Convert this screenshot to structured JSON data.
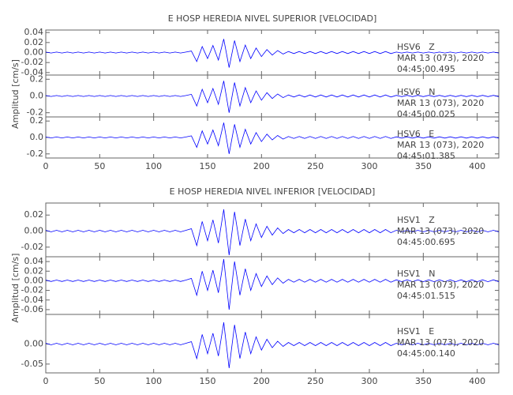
{
  "chart_data": [
    {
      "type": "line",
      "title": "E HOSP HEREDIA NIVEL SUPERIOR [VELOCIDAD]",
      "ylabel": "Amplitud [cm/s]",
      "color": "#0000ff",
      "xlim": [
        0,
        420
      ],
      "xticks": [
        0,
        50,
        100,
        150,
        200,
        250,
        300,
        350,
        400
      ],
      "x": [
        0,
        5,
        10,
        15,
        20,
        25,
        30,
        35,
        40,
        45,
        50,
        55,
        60,
        65,
        70,
        75,
        80,
        85,
        90,
        95,
        100,
        105,
        110,
        115,
        120,
        125,
        130,
        135,
        140,
        145,
        150,
        155,
        160,
        165,
        170,
        175,
        180,
        185,
        190,
        195,
        200,
        205,
        210,
        215,
        220,
        225,
        230,
        235,
        240,
        245,
        250,
        255,
        260,
        265,
        270,
        275,
        280,
        285,
        290,
        295,
        300,
        305,
        310,
        315,
        320,
        325,
        330,
        335,
        340,
        345,
        350,
        355,
        360,
        365,
        370,
        375,
        380,
        385,
        390,
        395,
        400,
        405,
        410,
        415,
        420
      ],
      "panels": [
        {
          "station": "HSV6   Z",
          "date": "MAR 13 (073), 2020",
          "time": "04:45:00.495",
          "ylim": [
            -0.045,
            0.045
          ],
          "yticks": [
            0.04,
            0.02,
            {
              "value": 0,
              "label": "0.00"
            },
            -0.02,
            -0.04
          ],
          "values": [
            0.001,
            -0.001,
            0.001,
            -0.001,
            0.001,
            -0.001,
            0.001,
            -0.001,
            0.001,
            -0.001,
            0.001,
            -0.001,
            0.001,
            -0.001,
            0.001,
            -0.001,
            0.001,
            -0.001,
            0.001,
            -0.001,
            0.001,
            -0.001,
            0.001,
            -0.001,
            0.001,
            -0.001,
            0.001,
            0.003,
            -0.018,
            0.012,
            -0.012,
            0.014,
            -0.015,
            0.027,
            -0.03,
            0.024,
            -0.018,
            0.015,
            -0.012,
            0.009,
            -0.008,
            0.006,
            -0.005,
            0.004,
            -0.003,
            0.002,
            -0.002,
            0.002,
            -0.002,
            0.002,
            -0.002,
            0.002,
            -0.002,
            0.002,
            -0.002,
            0.002,
            -0.002,
            0.002,
            -0.002,
            0.002,
            -0.002,
            0.002,
            -0.002,
            0.002,
            -0.002,
            0.001,
            -0.001,
            0.001,
            -0.001,
            0.001,
            -0.001,
            0.001,
            -0.001,
            0.001,
            -0.001,
            0.001,
            -0.001,
            0.001,
            -0.001,
            0.001,
            -0.001,
            0.001,
            -0.001,
            0.001,
            -0.001
          ]
        },
        {
          "station": "HSV6   N",
          "date": "MAR 13 (073), 2020",
          "time": "04:45:00.025",
          "ylim": [
            -0.25,
            0.25
          ],
          "yticks": [
            0.2,
            {
              "value": 0,
              "label": "0.0"
            },
            -0.2
          ],
          "values": [
            0.006,
            -0.006,
            0.006,
            -0.006,
            0.006,
            -0.006,
            0.006,
            -0.006,
            0.006,
            -0.006,
            0.006,
            -0.006,
            0.006,
            -0.006,
            0.006,
            -0.006,
            0.006,
            -0.006,
            0.006,
            -0.006,
            0.006,
            -0.006,
            0.006,
            -0.006,
            0.006,
            -0.006,
            0.006,
            0.02,
            -0.12,
            0.08,
            -0.08,
            0.09,
            -0.1,
            0.18,
            -0.2,
            0.16,
            -0.12,
            0.1,
            -0.08,
            0.06,
            -0.05,
            0.04,
            -0.03,
            0.024,
            -0.02,
            0.012,
            -0.012,
            0.012,
            -0.012,
            0.012,
            -0.012,
            0.012,
            -0.012,
            0.012,
            -0.012,
            0.012,
            -0.012,
            0.012,
            -0.012,
            0.012,
            -0.012,
            0.012,
            -0.012,
            0.012,
            -0.012,
            0.008,
            -0.008,
            0.008,
            -0.008,
            0.008,
            -0.008,
            0.008,
            -0.008,
            0.008,
            -0.008,
            0.008,
            -0.008,
            0.008,
            -0.008,
            0.008,
            -0.008,
            0.008,
            -0.008,
            0.008,
            -0.008
          ]
        },
        {
          "station": "HSV6   E",
          "date": "MAR 13 (073), 2020",
          "time": "04:45:01.385",
          "ylim": [
            -0.25,
            0.25
          ],
          "yticks": [
            0.2,
            {
              "value": 0,
              "label": "0.0"
            },
            -0.2
          ],
          "values": [
            0.006,
            -0.006,
            0.006,
            -0.006,
            0.006,
            -0.006,
            0.006,
            -0.006,
            0.006,
            -0.006,
            0.006,
            -0.006,
            0.006,
            -0.006,
            0.006,
            -0.006,
            0.006,
            -0.006,
            0.006,
            -0.006,
            0.006,
            -0.006,
            0.006,
            -0.006,
            0.006,
            -0.006,
            0.006,
            0.02,
            -0.12,
            0.08,
            -0.08,
            0.09,
            -0.1,
            0.18,
            -0.2,
            0.16,
            -0.12,
            0.1,
            -0.08,
            0.06,
            -0.05,
            0.04,
            -0.03,
            0.024,
            -0.02,
            0.012,
            -0.012,
            0.012,
            -0.012,
            0.012,
            -0.012,
            0.012,
            -0.012,
            0.012,
            -0.012,
            0.012,
            -0.012,
            0.012,
            -0.012,
            0.012,
            -0.012,
            0.012,
            -0.012,
            0.012,
            -0.012,
            0.008,
            -0.008,
            0.008,
            -0.008,
            0.008,
            -0.008,
            0.008,
            -0.008,
            0.008,
            -0.008,
            0.008,
            -0.008,
            0.008,
            -0.008,
            0.008,
            -0.008,
            0.008,
            -0.008,
            0.008,
            -0.008
          ]
        }
      ]
    },
    {
      "type": "line",
      "title": "E HOSP HEREDIA NIVEL INFERIOR [VELOCIDAD]",
      "ylabel": "Amplitud [cm/s]",
      "color": "#0000ff",
      "xlim": [
        0,
        420
      ],
      "xticks": [
        0,
        50,
        100,
        150,
        200,
        250,
        300,
        350,
        400
      ],
      "x": [
        0,
        5,
        10,
        15,
        20,
        25,
        30,
        35,
        40,
        45,
        50,
        55,
        60,
        65,
        70,
        75,
        80,
        85,
        90,
        95,
        100,
        105,
        110,
        115,
        120,
        125,
        130,
        135,
        140,
        145,
        150,
        155,
        160,
        165,
        170,
        175,
        180,
        185,
        190,
        195,
        200,
        205,
        210,
        215,
        220,
        225,
        230,
        235,
        240,
        245,
        250,
        255,
        260,
        265,
        270,
        275,
        280,
        285,
        290,
        295,
        300,
        305,
        310,
        315,
        320,
        325,
        330,
        335,
        340,
        345,
        350,
        355,
        360,
        365,
        370,
        375,
        380,
        385,
        390,
        395,
        400,
        405,
        410,
        415,
        420
      ],
      "panels": [
        {
          "station": "HSV1   Z",
          "date": "MAR 13 (073), 2020",
          "time": "04:45:00.695",
          "ylim": [
            -0.032,
            0.035
          ],
          "yticks": [
            0.02,
            {
              "value": 0,
              "label": "0.00"
            },
            -0.02
          ],
          "values": [
            0.001,
            -0.001,
            0.001,
            -0.001,
            0.001,
            -0.001,
            0.001,
            -0.001,
            0.001,
            -0.001,
            0.001,
            -0.001,
            0.001,
            -0.001,
            0.001,
            -0.001,
            0.001,
            -0.001,
            0.001,
            -0.001,
            0.001,
            -0.001,
            0.001,
            -0.001,
            0.001,
            -0.001,
            0.001,
            0.003,
            -0.018,
            0.012,
            -0.012,
            0.014,
            -0.015,
            0.027,
            -0.03,
            0.024,
            -0.018,
            0.015,
            -0.012,
            0.009,
            -0.008,
            0.006,
            -0.005,
            0.004,
            -0.003,
            0.002,
            -0.002,
            0.002,
            -0.002,
            0.002,
            -0.002,
            0.002,
            -0.002,
            0.002,
            -0.002,
            0.002,
            -0.002,
            0.002,
            -0.002,
            0.002,
            -0.002,
            0.002,
            -0.002,
            0.002,
            -0.002,
            0.001,
            -0.001,
            0.001,
            -0.001,
            0.001,
            -0.001,
            0.001,
            -0.001,
            0.001,
            -0.001,
            0.001,
            -0.001,
            0.001,
            -0.001,
            0.001,
            -0.001,
            0.001,
            -0.001,
            0.001,
            -0.001
          ]
        },
        {
          "station": "HSV1   N",
          "date": "MAR 13 (073), 2020",
          "time": "04:45:01.515",
          "ylim": [
            -0.07,
            0.05
          ],
          "yticks": [
            0.04,
            0.02,
            {
              "value": 0,
              "label": "0.00"
            },
            -0.02,
            -0.04,
            -0.06
          ],
          "values": [
            0.0015,
            -0.0015,
            0.0015,
            -0.0015,
            0.0015,
            -0.0015,
            0.0015,
            -0.0015,
            0.0015,
            -0.0015,
            0.0015,
            -0.0015,
            0.0015,
            -0.0015,
            0.0015,
            -0.0015,
            0.0015,
            -0.0015,
            0.0015,
            -0.0015,
            0.0015,
            -0.0015,
            0.0015,
            -0.0015,
            0.0015,
            -0.0015,
            0.0015,
            0.005,
            -0.03,
            0.02,
            -0.02,
            0.022,
            -0.025,
            0.045,
            -0.06,
            0.04,
            -0.03,
            0.025,
            -0.02,
            0.015,
            -0.012,
            0.01,
            -0.008,
            0.006,
            -0.005,
            0.003,
            -0.003,
            0.003,
            -0.003,
            0.003,
            -0.003,
            0.003,
            -0.003,
            0.003,
            -0.003,
            0.003,
            -0.003,
            0.003,
            -0.003,
            0.003,
            -0.003,
            0.003,
            -0.003,
            0.003,
            -0.003,
            0.002,
            -0.002,
            0.002,
            -0.002,
            0.002,
            -0.002,
            0.002,
            -0.002,
            0.002,
            -0.002,
            0.002,
            -0.002,
            0.002,
            -0.002,
            0.002,
            -0.002,
            0.002,
            -0.002,
            0.002,
            -0.002
          ]
        },
        {
          "station": "HSV1   E",
          "date": "MAR 13 (073), 2020",
          "time": "04:45:00.140",
          "ylim": [
            -0.072,
            0.074
          ],
          "yticks": [
            {
              "value": 0,
              "label": "0.00"
            },
            -0.05
          ],
          "values": [
            0.002,
            -0.002,
            0.002,
            -0.002,
            0.002,
            -0.002,
            0.002,
            -0.002,
            0.002,
            -0.002,
            0.002,
            -0.002,
            0.002,
            -0.002,
            0.002,
            -0.002,
            0.002,
            -0.002,
            0.002,
            -0.002,
            0.002,
            -0.002,
            0.002,
            -0.002,
            0.002,
            -0.002,
            0.002,
            0.006,
            -0.036,
            0.024,
            -0.024,
            0.027,
            -0.03,
            0.054,
            -0.06,
            0.048,
            -0.036,
            0.03,
            -0.024,
            0.018,
            -0.015,
            0.012,
            -0.009,
            0.007,
            -0.006,
            0.004,
            -0.004,
            0.004,
            -0.004,
            0.004,
            -0.004,
            0.004,
            -0.004,
            0.004,
            -0.004,
            0.004,
            -0.004,
            0.004,
            -0.004,
            0.004,
            -0.004,
            0.004,
            -0.004,
            0.004,
            -0.004,
            0.002,
            -0.002,
            0.002,
            -0.002,
            0.002,
            -0.002,
            0.002,
            -0.002,
            0.002,
            -0.002,
            0.002,
            -0.002,
            0.002,
            -0.002,
            0.002,
            -0.002,
            0.002,
            -0.002,
            0.002,
            -0.002
          ]
        }
      ]
    }
  ]
}
